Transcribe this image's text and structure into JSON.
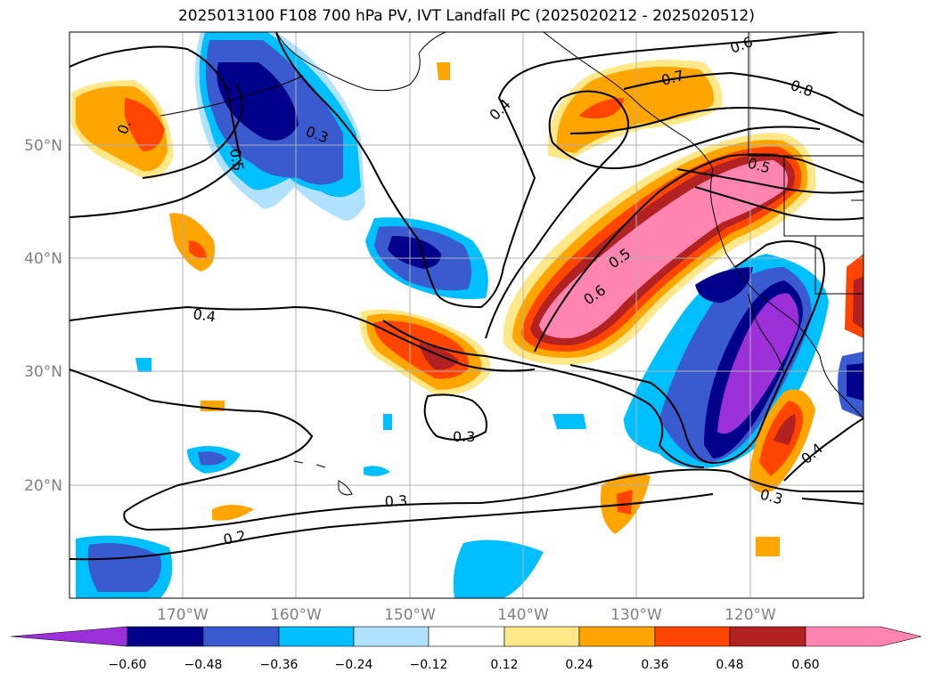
{
  "title": "2025013100 F108 700 hPa PV, IVT Landfall PC (2025020212 - 2025020512)",
  "axes": {
    "lat_labels": [
      "50°N",
      "40°N",
      "30°N",
      "20°N"
    ],
    "lon_labels": [
      "170°W",
      "160°W",
      "150°W",
      "140°W",
      "130°W",
      "120°W"
    ],
    "lon_range": [
      -180,
      -110
    ],
    "lat_range": [
      10,
      60
    ],
    "grid": true
  },
  "colorbar": {
    "ticks": [
      "−0.60",
      "−0.48",
      "−0.36",
      "−0.24",
      "−0.12",
      "0.12",
      "0.24",
      "0.36",
      "0.48",
      "0.60"
    ],
    "colors": [
      "#9b30d9",
      "#00008b",
      "#3a5bd0",
      "#00bfff",
      "#b0e2ff",
      "#ffffff",
      "#ffe88a",
      "#ffa500",
      "#ff4500",
      "#b22222",
      "#ff85b0"
    ],
    "extend": "both"
  },
  "contour_labels": {
    "l1": "0.3",
    "l2": "0.5",
    "l3": "0.4",
    "l4": "0.6",
    "l5": "0.7",
    "l6": "0.8",
    "l7": "0.5",
    "l8": "0.5",
    "l9": "0.6",
    "l10": "0.4",
    "l11": "0.3",
    "l12": "0.3",
    "l13": "0.2",
    "l14": "0.3",
    "l15": "0.4",
    "l16": "0."
  },
  "chart_data": {
    "type": "heatmap",
    "title": "2025013100 F108 700 hPa PV, IVT Landfall PC (2025020212 - 2025020512)",
    "xlabel": "",
    "ylabel": "",
    "xlim": [
      -180,
      -110
    ],
    "ylim": [
      10,
      60
    ],
    "filled_field_levels": [
      -0.6,
      -0.48,
      -0.36,
      -0.24,
      -0.12,
      0.12,
      0.24,
      0.36,
      0.48,
      0.6
    ],
    "line_contour_values": [
      0.2,
      0.3,
      0.4,
      0.5,
      0.6,
      0.7,
      0.8
    ]
  }
}
